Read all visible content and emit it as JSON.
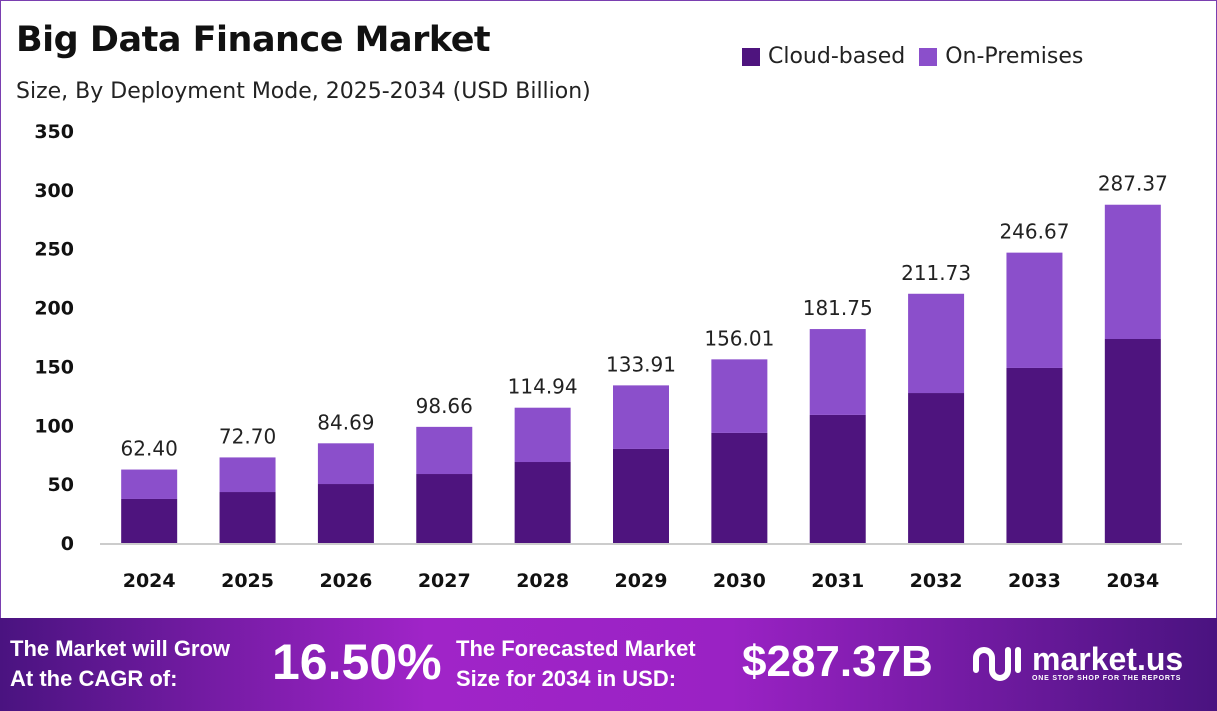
{
  "chart_data": {
    "type": "bar",
    "stacked": true,
    "title": "Big Data Finance Market",
    "subtitle": "Size, By Deployment Mode, 2025-2034 (USD Billion)",
    "categories": [
      "2024",
      "2025",
      "2026",
      "2027",
      "2028",
      "2029",
      "2030",
      "2031",
      "2032",
      "2033",
      "2034"
    ],
    "series": [
      {
        "name": "Cloud-based",
        "color": "#4e147e",
        "values": [
          37.4,
          43.3,
          50.1,
          58.6,
          68.8,
          79.9,
          93.5,
          108.8,
          127.4,
          148.7,
          173.3
        ]
      },
      {
        "name": "On-Premises",
        "color": "#8b4fcb",
        "values": [
          25.0,
          29.4,
          34.59,
          40.06,
          46.14,
          54.01,
          62.51,
          72.95,
          84.33,
          97.97,
          114.07
        ]
      }
    ],
    "totals": [
      "62.40",
      "72.70",
      "84.69",
      "98.66",
      "114.94",
      "133.91",
      "156.01",
      "181.75",
      "211.73",
      "246.67",
      "287.37"
    ],
    "yticks": [
      "0",
      "50",
      "100",
      "150",
      "200",
      "250",
      "300",
      "350"
    ],
    "ylim": [
      0,
      350
    ],
    "legend_position": "top-right",
    "grid": false
  },
  "footer": {
    "cagr_label_1": "The Market will Grow",
    "cagr_label_2": "At the CAGR of:",
    "cagr_value": "16.50%",
    "forecast_label_1": "The Forecasted Market",
    "forecast_label_2": "Size for 2034 in USD:",
    "forecast_value": "$287.37B",
    "logo_name": "market.us",
    "logo_tagline": "ONE STOP SHOP FOR THE REPORTS"
  }
}
